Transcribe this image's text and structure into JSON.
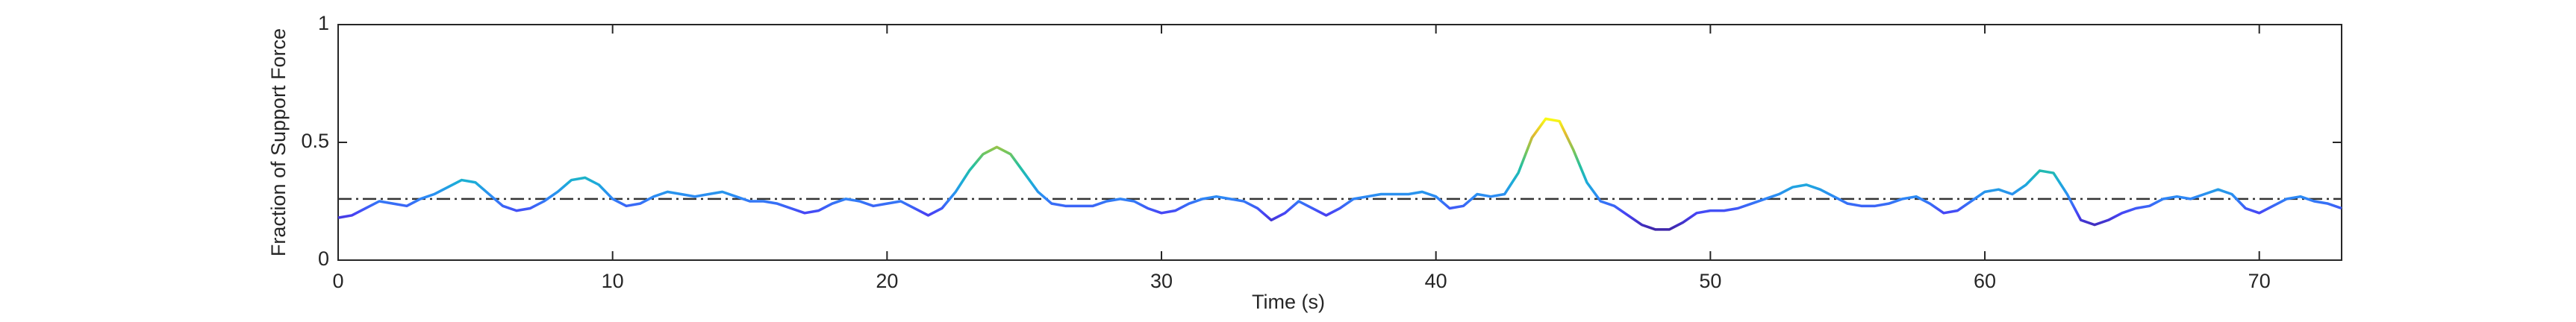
{
  "chart_data": {
    "type": "line",
    "x_label": "Time (s)",
    "y_label": "Fraction of Support Force",
    "xlim": [
      0,
      73
    ],
    "ylim": [
      0,
      1
    ],
    "xticks": [
      0,
      10,
      20,
      30,
      40,
      50,
      60,
      70
    ],
    "yticks": [
      0,
      0.5,
      1
    ],
    "colormap": [
      "#3e26a8",
      "#4743f5",
      "#2e87f7",
      "#1cadd8",
      "#25c0a0",
      "#80c655",
      "#e1b930",
      "#f9fb15"
    ],
    "reference_line": {
      "value": 0.26,
      "color": "#333333",
      "style": "dash-dot"
    },
    "x": [
      0,
      0.5,
      1,
      1.5,
      2,
      2.5,
      3,
      3.5,
      4,
      4.5,
      5,
      5.5,
      6,
      6.5,
      7,
      7.5,
      8,
      8.5,
      9,
      9.5,
      10,
      10.5,
      11,
      11.5,
      12,
      12.5,
      13,
      13.5,
      14,
      14.5,
      15,
      15.5,
      16,
      16.5,
      17,
      17.5,
      18,
      18.5,
      19,
      19.5,
      20,
      20.5,
      21,
      21.5,
      22,
      22.5,
      23,
      23.5,
      24,
      24.5,
      25,
      25.5,
      26,
      26.5,
      27,
      27.5,
      28,
      28.5,
      29,
      29.5,
      30,
      30.5,
      31,
      31.5,
      32,
      32.5,
      33,
      33.5,
      34,
      34.5,
      35,
      35.5,
      36,
      36.5,
      37,
      37.5,
      38,
      38.5,
      39,
      39.5,
      40,
      40.5,
      41,
      41.5,
      42,
      42.5,
      43,
      43.5,
      44,
      44.5,
      45,
      45.5,
      46,
      46.5,
      47,
      47.5,
      48,
      48.5,
      49,
      49.5,
      50,
      50.5,
      51,
      51.5,
      52,
      52.5,
      53,
      53.5,
      54,
      54.5,
      55,
      55.5,
      56,
      56.5,
      57,
      57.5,
      58,
      58.5,
      59,
      59.5,
      60,
      60.5,
      61,
      61.5,
      62,
      62.5,
      63,
      63.5,
      64,
      64.5,
      65,
      65.5,
      66,
      66.5,
      67,
      67.5,
      68,
      68.5,
      69,
      69.5,
      70,
      70.5,
      71,
      71.5,
      72,
      72.5,
      73
    ],
    "values": [
      0.18,
      0.19,
      0.22,
      0.25,
      0.24,
      0.23,
      0.26,
      0.28,
      0.31,
      0.34,
      0.33,
      0.28,
      0.23,
      0.21,
      0.22,
      0.25,
      0.29,
      0.34,
      0.35,
      0.32,
      0.26,
      0.23,
      0.24,
      0.27,
      0.29,
      0.28,
      0.27,
      0.28,
      0.29,
      0.27,
      0.25,
      0.25,
      0.24,
      0.22,
      0.2,
      0.21,
      0.24,
      0.26,
      0.25,
      0.23,
      0.24,
      0.25,
      0.22,
      0.19,
      0.22,
      0.29,
      0.38,
      0.45,
      0.48,
      0.45,
      0.37,
      0.29,
      0.24,
      0.23,
      0.23,
      0.23,
      0.25,
      0.26,
      0.25,
      0.22,
      0.2,
      0.21,
      0.24,
      0.26,
      0.27,
      0.26,
      0.25,
      0.22,
      0.17,
      0.2,
      0.25,
      0.22,
      0.19,
      0.22,
      0.26,
      0.27,
      0.28,
      0.28,
      0.28,
      0.29,
      0.27,
      0.22,
      0.23,
      0.28,
      0.27,
      0.28,
      0.37,
      0.52,
      0.6,
      0.59,
      0.47,
      0.33,
      0.25,
      0.23,
      0.19,
      0.15,
      0.13,
      0.13,
      0.16,
      0.2,
      0.21,
      0.21,
      0.22,
      0.24,
      0.26,
      0.28,
      0.31,
      0.32,
      0.3,
      0.27,
      0.24,
      0.23,
      0.23,
      0.24,
      0.26,
      0.27,
      0.24,
      0.2,
      0.21,
      0.25,
      0.29,
      0.3,
      0.28,
      0.32,
      0.38,
      0.37,
      0.28,
      0.17,
      0.15,
      0.17,
      0.2,
      0.22,
      0.23,
      0.26,
      0.27,
      0.26,
      0.28,
      0.3,
      0.28,
      0.22,
      0.2,
      0.23,
      0.26,
      0.27,
      0.25,
      0.24,
      0.22
    ]
  }
}
